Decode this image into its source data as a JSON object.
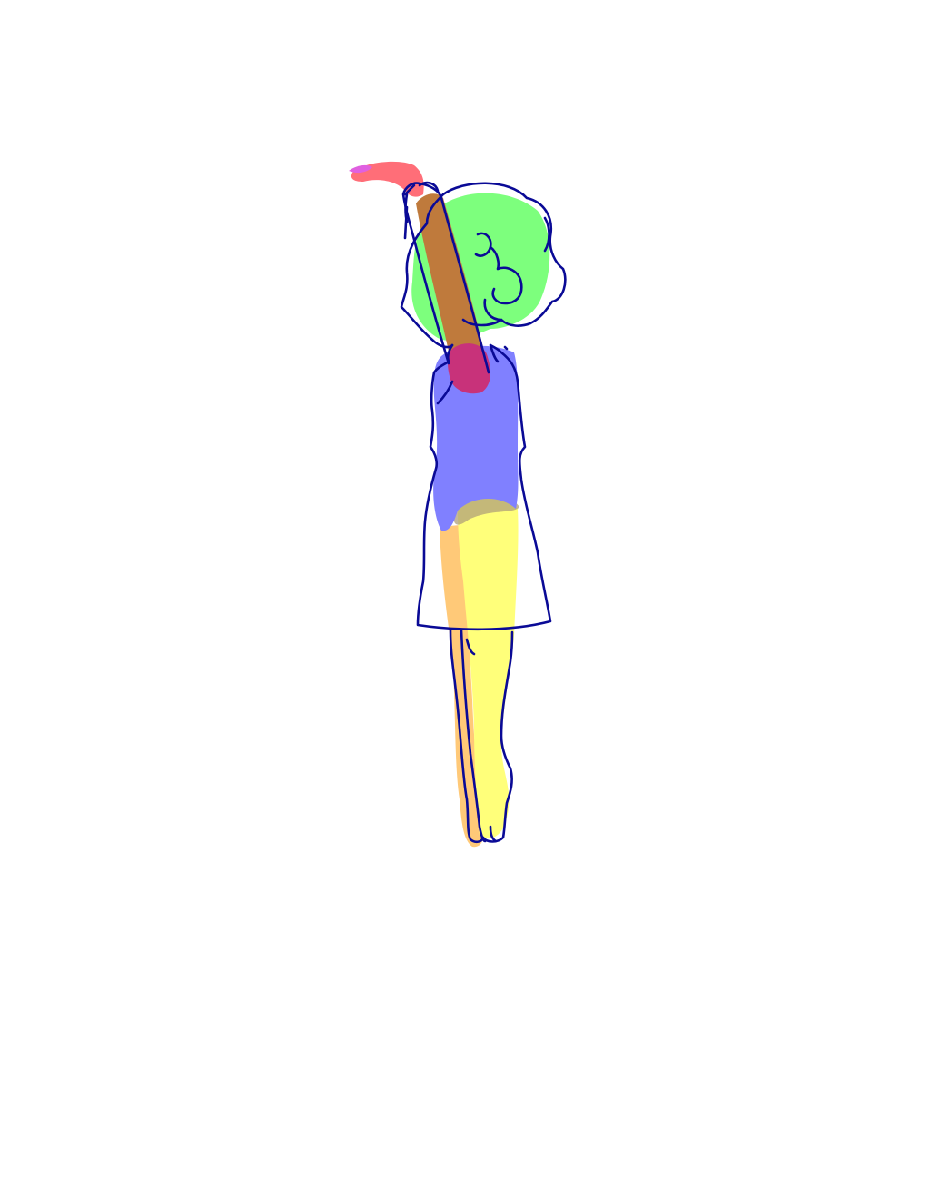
{
  "figure": {
    "colors": {
      "background": "#ffffff",
      "outline": "#0a0a96",
      "hair": "#7dff7d",
      "skin_arm": "#ff6e78",
      "sleeve": "#bf7a3c",
      "sleeve_cuff": "#c8327a",
      "torso": "#8080ff",
      "leg_near": "#ffff7a",
      "leg_far": "#ffc978",
      "hip_shadow": "#b0a07a",
      "hand_accent": "#e060e0"
    },
    "parts": [
      "hair",
      "raised-arm",
      "torso",
      "skirt",
      "legs"
    ]
  }
}
